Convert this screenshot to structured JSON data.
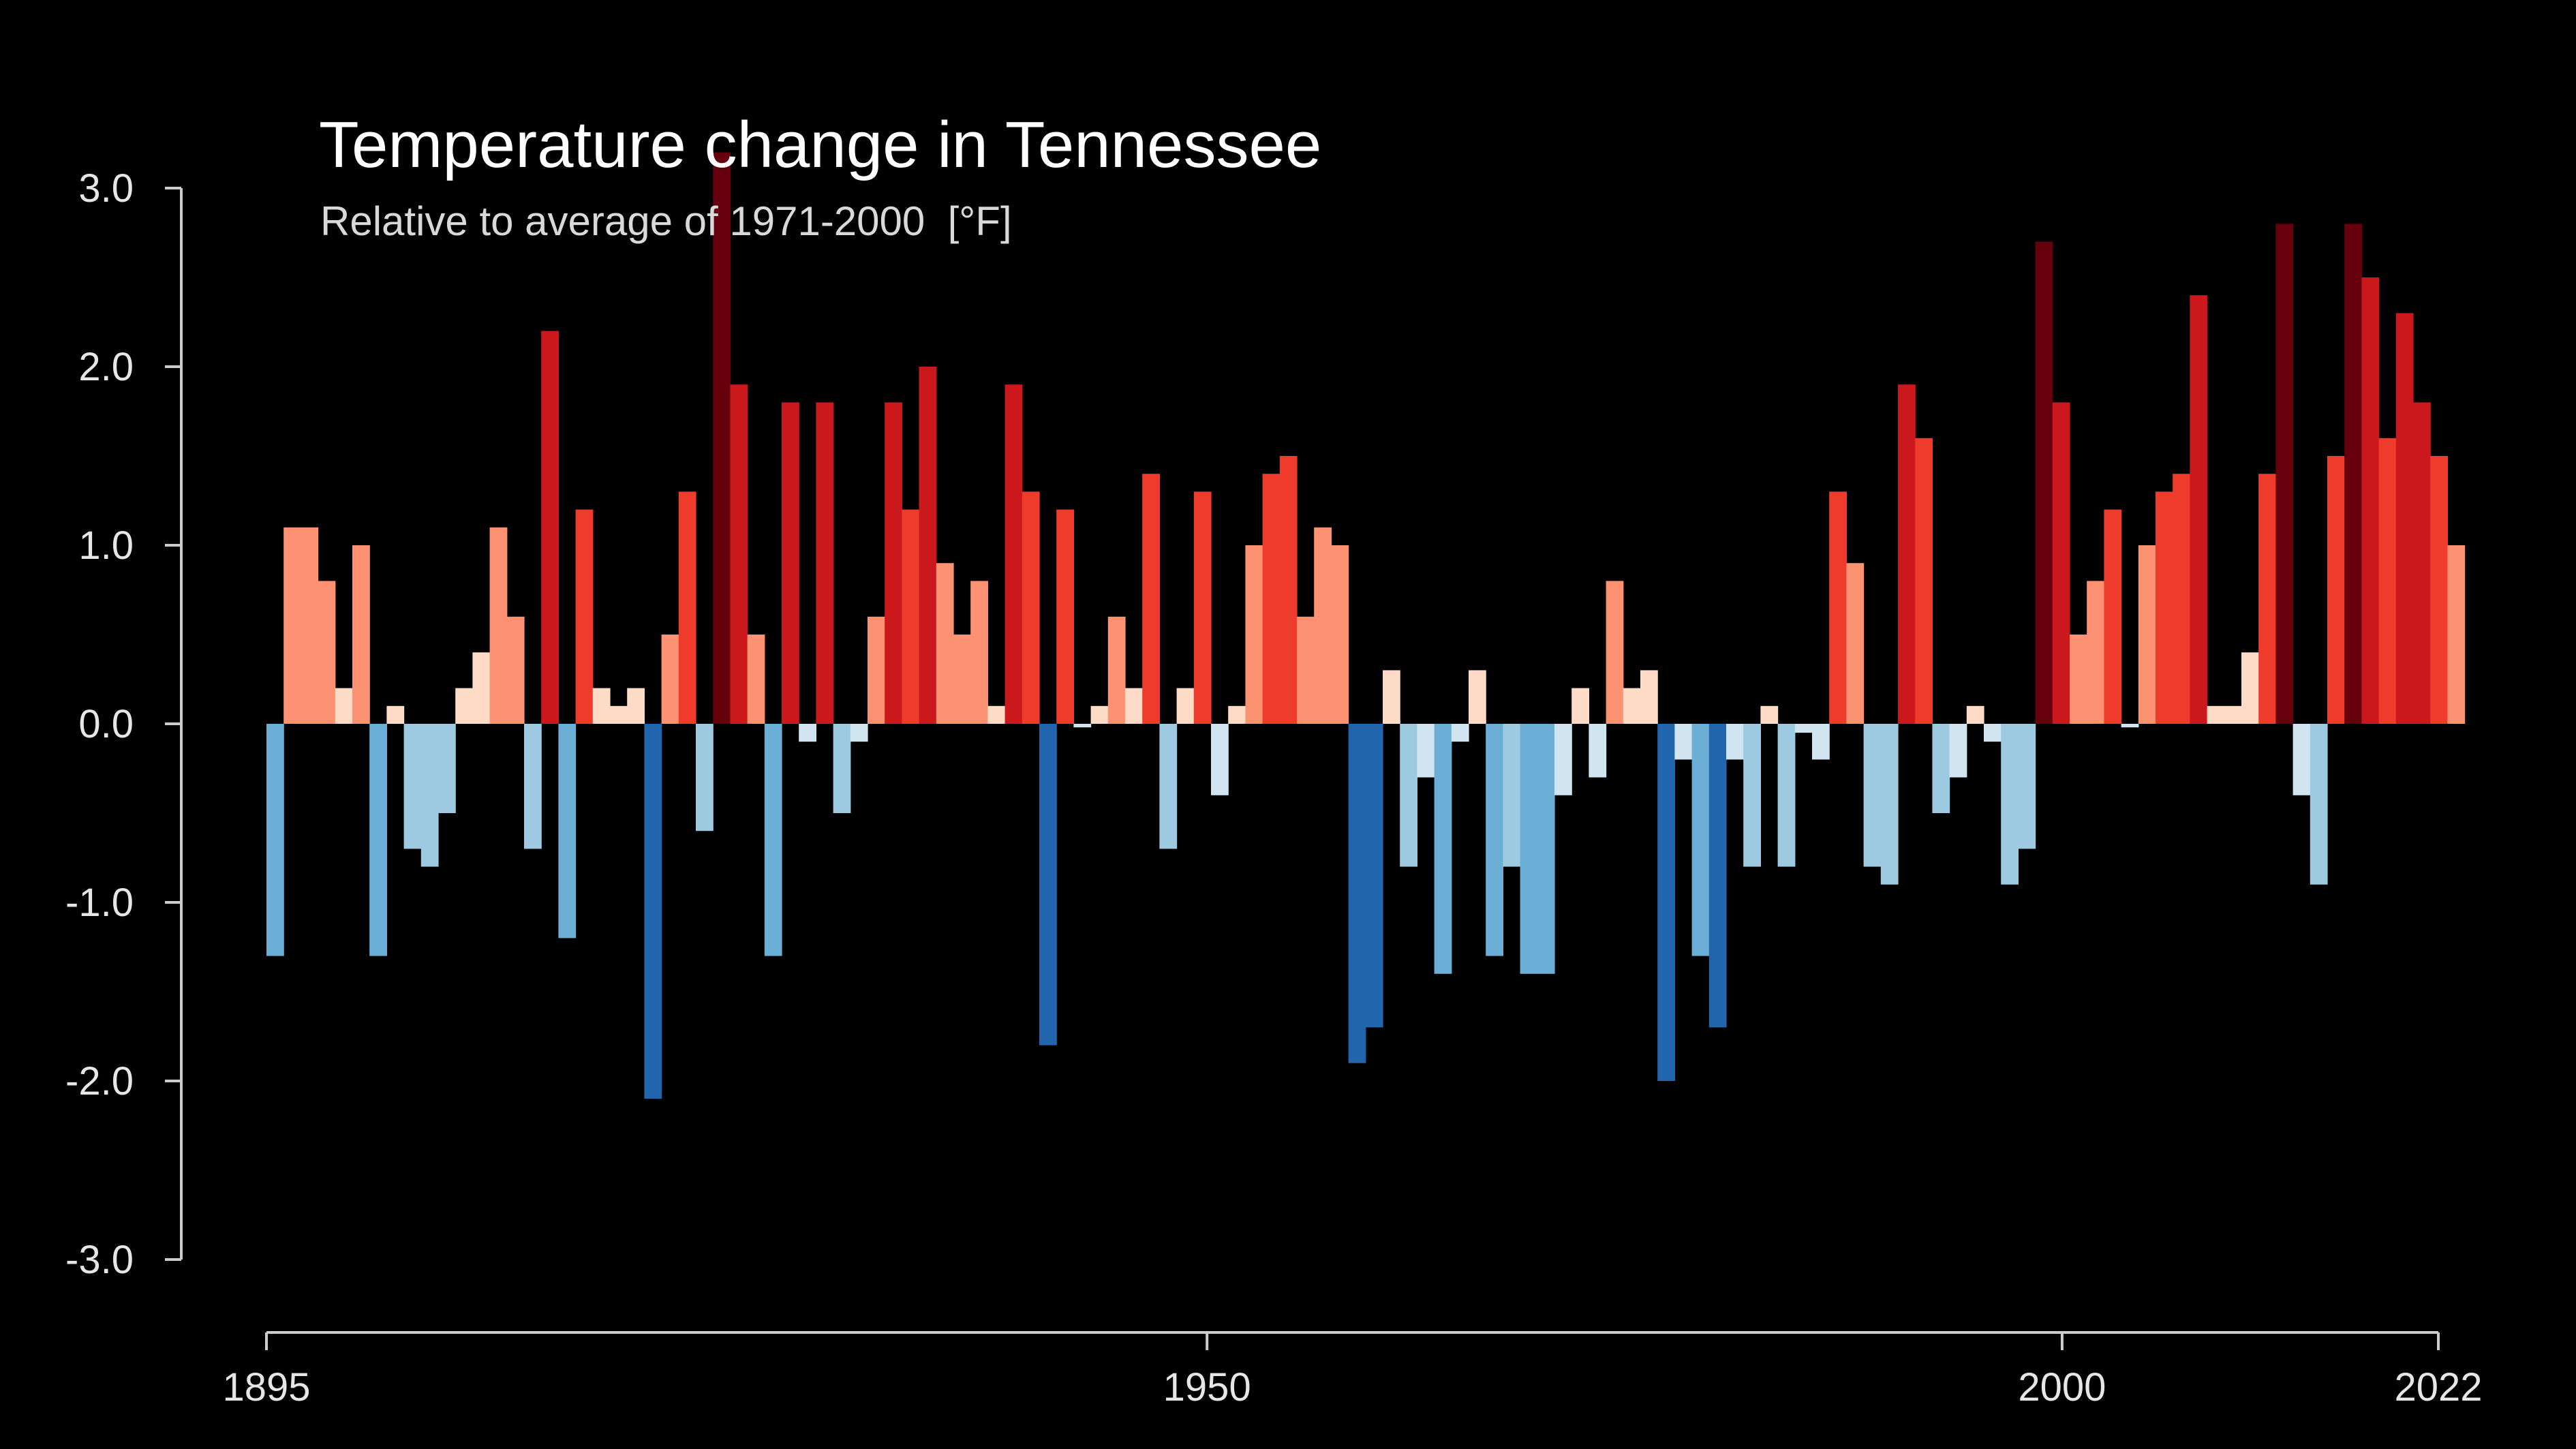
{
  "chart_data": {
    "type": "bar",
    "title": "Temperature change in Tennessee",
    "subtitle": "Relative to average of 1971-2000  [°F]",
    "xlabel": "",
    "ylabel": "",
    "x_start": 1895,
    "x_end": 2022,
    "xlim": [
      1895,
      2022
    ],
    "ylim": [
      -3.0,
      3.0
    ],
    "x_ticks": [
      1895,
      1950,
      2000,
      2022
    ],
    "y_ticks": [
      3.0,
      2.0,
      1.0,
      0.0,
      -1.0,
      -2.0,
      -3.0
    ],
    "y_tick_labels": [
      "3.0",
      "2.0",
      "1.0",
      "0.0",
      "-1.0",
      "-2.0",
      "-3.0"
    ],
    "grid": false,
    "legend": "none",
    "colors": {
      "background": "#000000",
      "axis": "#cccccc",
      "cold_strong": "#2166ac",
      "cold_medium": "#6baed6",
      "cold_light": "#9ecae1",
      "cold_faint": "#d1e5f0",
      "warm_faint": "#fddbc7",
      "warm_light": "#fc9272",
      "warm_medium": "#ef3b2c",
      "warm_strong": "#cb181d",
      "warm_darkest": "#67000d"
    },
    "years": [
      1895,
      1896,
      1897,
      1898,
      1899,
      1900,
      1901,
      1902,
      1903,
      1904,
      1905,
      1906,
      1907,
      1908,
      1909,
      1910,
      1911,
      1912,
      1913,
      1914,
      1915,
      1916,
      1917,
      1918,
      1919,
      1920,
      1921,
      1922,
      1923,
      1924,
      1925,
      1926,
      1927,
      1928,
      1929,
      1930,
      1931,
      1932,
      1933,
      1934,
      1935,
      1936,
      1937,
      1938,
      1939,
      1940,
      1941,
      1942,
      1943,
      1944,
      1945,
      1946,
      1947,
      1948,
      1949,
      1950,
      1951,
      1952,
      1953,
      1954,
      1955,
      1956,
      1957,
      1958,
      1959,
      1960,
      1961,
      1962,
      1963,
      1964,
      1965,
      1966,
      1967,
      1968,
      1969,
      1970,
      1971,
      1972,
      1973,
      1974,
      1975,
      1976,
      1977,
      1978,
      1979,
      1980,
      1981,
      1982,
      1983,
      1984,
      1985,
      1986,
      1987,
      1988,
      1989,
      1990,
      1991,
      1992,
      1993,
      1994,
      1995,
      1996,
      1997,
      1998,
      1999,
      2000,
      2001,
      2002,
      2003,
      2004,
      2005,
      2006,
      2007,
      2008,
      2009,
      2010,
      2011,
      2012,
      2013,
      2014,
      2015,
      2016,
      2017,
      2018,
      2019,
      2020,
      2021,
      2022
    ],
    "values": [
      -1.3,
      1.1,
      1.1,
      0.8,
      0.2,
      1.0,
      -1.3,
      0.1,
      -0.7,
      -0.8,
      -0.5,
      0.2,
      0.4,
      1.1,
      0.6,
      -0.7,
      2.2,
      -1.2,
      1.2,
      0.2,
      0.1,
      0.2,
      -2.1,
      0.5,
      1.3,
      -0.6,
      3.2,
      1.9,
      0.5,
      -1.3,
      1.8,
      -0.1,
      1.8,
      -0.5,
      -0.1,
      0.6,
      1.8,
      1.2,
      2.0,
      0.9,
      0.5,
      0.8,
      0.1,
      1.9,
      1.3,
      -1.8,
      1.2,
      -0.02,
      0.1,
      0.6,
      0.2,
      1.4,
      -0.7,
      0.2,
      1.3,
      -0.4,
      0.1,
      1.0,
      1.4,
      1.5,
      0.6,
      1.1,
      1.0,
      -1.9,
      -1.7,
      0.3,
      -0.8,
      -0.3,
      -1.4,
      -0.1,
      0.3,
      -1.3,
      -0.8,
      -1.4,
      -1.4,
      -0.4,
      0.2,
      -0.3,
      0.8,
      0.2,
      0.3,
      -2.0,
      -0.2,
      -1.3,
      -1.7,
      -0.2,
      -0.8,
      0.1,
      -0.8,
      -0.05,
      -0.2,
      1.3,
      0.9,
      -0.8,
      -0.9,
      1.9,
      1.6,
      -0.5,
      -0.3,
      0.1,
      -0.1,
      -0.9,
      -0.7,
      2.7,
      1.8,
      0.5,
      0.8,
      1.2,
      -0.02,
      1.0,
      1.3,
      1.4,
      2.4,
      0.1,
      0.1,
      0.4,
      1.4,
      2.8,
      -0.4,
      -0.9,
      1.5,
      2.8,
      2.5,
      1.6,
      2.3,
      1.8,
      1.5,
      1.0
    ]
  }
}
